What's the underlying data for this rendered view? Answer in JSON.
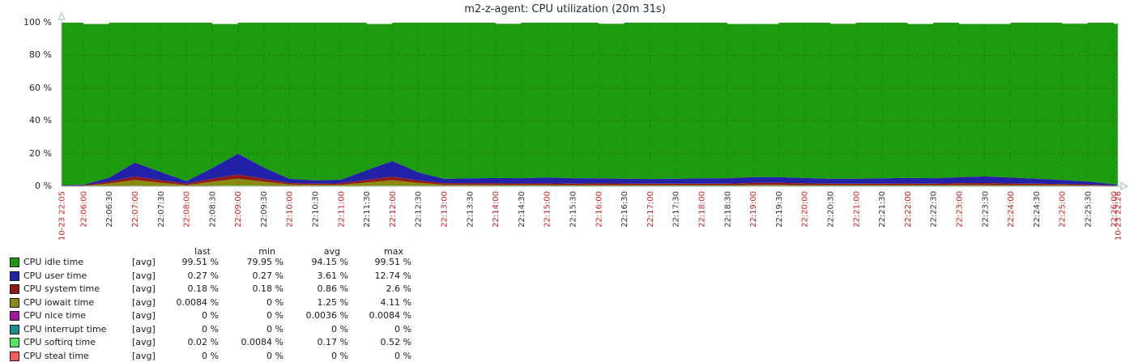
{
  "title": "m2-z-agent: CPU utilization (20m 31s)",
  "colors": {
    "idle": "#1E9B0E",
    "user": "#2222A8",
    "system": "#911919",
    "iowait": "#8A8A10",
    "nice": "#A018A0",
    "interrupt": "#1F8C8C",
    "softirq": "#55E45C",
    "steal": "#FA5C5C",
    "axis": "#A9B7BF",
    "grid_v": "rgba(0,0,0,0.14)",
    "grid_h": "rgba(0,0,0,0.20)",
    "tick_major": "#CC2222",
    "tick_minor": "#333333"
  },
  "y_axis": {
    "unit": "%",
    "ticks": [
      "0 %",
      "20 %",
      "40 %",
      "60 %",
      "80 %",
      "100 %"
    ]
  },
  "chart_data": {
    "type": "area",
    "stacked": true,
    "title": "m2-z-agent: CPU utilization (20m 31s)",
    "ylim": [
      0,
      100
    ],
    "x_range": [
      "10-23 22:05",
      "10-23 22:26"
    ],
    "x_ticks": [
      {
        "t": "10-23 22:05",
        "r": 1
      },
      {
        "t": "22:06:00",
        "r": 1
      },
      {
        "t": "22:06:30",
        "r": 0
      },
      {
        "t": "22:07:00",
        "r": 1
      },
      {
        "t": "22:07:30",
        "r": 0
      },
      {
        "t": "22:08:00",
        "r": 1
      },
      {
        "t": "22:08:30",
        "r": 0
      },
      {
        "t": "22:09:00",
        "r": 1
      },
      {
        "t": "22:09:30",
        "r": 0
      },
      {
        "t": "22:10:00",
        "r": 1
      },
      {
        "t": "22:10:30",
        "r": 0
      },
      {
        "t": "22:11:00",
        "r": 1
      },
      {
        "t": "22:11:30",
        "r": 0
      },
      {
        "t": "22:12:00",
        "r": 1
      },
      {
        "t": "22:12:30",
        "r": 0
      },
      {
        "t": "22:13:00",
        "r": 1
      },
      {
        "t": "22:13:30",
        "r": 0
      },
      {
        "t": "22:14:00",
        "r": 1
      },
      {
        "t": "22:14:30",
        "r": 0
      },
      {
        "t": "22:15:00",
        "r": 1
      },
      {
        "t": "22:15:30",
        "r": 0
      },
      {
        "t": "22:16:00",
        "r": 1
      },
      {
        "t": "22:16:30",
        "r": 0
      },
      {
        "t": "22:17:00",
        "r": 1
      },
      {
        "t": "22:17:30",
        "r": 0
      },
      {
        "t": "22:18:00",
        "r": 1
      },
      {
        "t": "22:18:30",
        "r": 0
      },
      {
        "t": "22:19:00",
        "r": 1
      },
      {
        "t": "22:19:30",
        "r": 0
      },
      {
        "t": "22:20:00",
        "r": 1
      },
      {
        "t": "22:20:30",
        "r": 0
      },
      {
        "t": "22:21:00",
        "r": 1
      },
      {
        "t": "22:21:30",
        "r": 0
      },
      {
        "t": "22:22:00",
        "r": 1
      },
      {
        "t": "22:22:30",
        "r": 0
      },
      {
        "t": "22:23:00",
        "r": 1
      },
      {
        "t": "22:23:30",
        "r": 0
      },
      {
        "t": "22:24:00",
        "r": 1
      },
      {
        "t": "22:24:30",
        "r": 0
      },
      {
        "t": "22:25:00",
        "r": 1
      },
      {
        "t": "22:25:30",
        "r": 0
      },
      {
        "t": "22:26:00",
        "r": 1
      },
      {
        "t": "10-23 22:26",
        "r": 1
      }
    ],
    "series": [
      {
        "name": "CPU softirq time",
        "color_key": "softirq",
        "values": [
          0.15,
          0.15,
          0.2,
          0.3,
          0.2,
          0.2,
          0.3,
          0.5,
          0.3,
          0.2,
          0.2,
          0.2,
          0.3,
          0.4,
          0.3,
          0.2,
          0.2,
          0.2,
          0.2,
          0.2,
          0.2,
          0.2,
          0.2,
          0.2,
          0.2,
          0.2,
          0.2,
          0.25,
          0.25,
          0.2,
          0.2,
          0.2,
          0.2,
          0.2,
          0.2,
          0.2,
          0.2,
          0.2,
          0.2,
          0.2,
          0.15,
          0.1,
          0.02
        ]
      },
      {
        "name": "CPU iowait time",
        "color_key": "iowait",
        "values": [
          0.05,
          0.1,
          1.5,
          3.5,
          2.0,
          0.5,
          2.5,
          4.1,
          2.5,
          0.9,
          0.6,
          0.7,
          2.0,
          3.3,
          1.8,
          0.8,
          0.7,
          0.6,
          0.6,
          0.6,
          0.5,
          0.5,
          0.5,
          0.5,
          0.5,
          0.5,
          0.5,
          0.6,
          0.6,
          0.5,
          0.5,
          0.5,
          0.5,
          0.5,
          0.5,
          0.6,
          0.6,
          0.5,
          0.5,
          0.4,
          0.3,
          0.1,
          0.01
        ]
      },
      {
        "name": "CPU system time",
        "color_key": "system",
        "values": [
          0.2,
          0.3,
          1.0,
          2.2,
          1.5,
          0.8,
          1.8,
          2.6,
          1.8,
          0.9,
          0.8,
          0.9,
          1.5,
          2.2,
          1.4,
          0.9,
          0.9,
          1.0,
          0.9,
          1.0,
          0.9,
          1.1,
          1.0,
          0.9,
          0.9,
          0.9,
          0.9,
          1.2,
          1.3,
          1.1,
          0.9,
          0.9,
          0.9,
          1.0,
          0.9,
          1.1,
          1.2,
          1.0,
          0.9,
          0.8,
          0.6,
          0.3,
          0.18
        ]
      },
      {
        "name": "CPU user time",
        "color_key": "user",
        "values": [
          0.3,
          0.4,
          2.5,
          8.5,
          5.0,
          1.6,
          6.5,
          12.7,
          7.0,
          2.5,
          2.0,
          2.2,
          6.0,
          9.5,
          5.0,
          2.6,
          3.0,
          3.2,
          3.2,
          3.5,
          3.3,
          3.0,
          2.9,
          2.8,
          3.0,
          3.2,
          3.3,
          3.5,
          3.4,
          3.2,
          3.0,
          3.0,
          3.2,
          3.4,
          3.3,
          3.6,
          4.0,
          3.6,
          3.0,
          2.5,
          1.8,
          0.8,
          0.27
        ]
      },
      {
        "name": "CPU idle time",
        "color_key": "idle",
        "fills_to": "stack_total"
      }
    ],
    "stack_total": [
      100,
      99.2,
      100,
      100,
      100,
      100,
      99.2,
      100,
      100,
      100,
      100,
      100,
      99.2,
      100,
      100,
      100,
      100,
      99.3,
      100,
      100,
      100,
      99.3,
      100,
      100,
      100,
      100,
      99.2,
      99.2,
      100,
      100,
      99.3,
      100,
      100,
      99.2,
      100,
      99.2,
      99.2,
      100,
      100,
      99.4,
      100,
      99.3,
      100
    ],
    "zero_series": [
      "CPU nice time",
      "CPU interrupt time",
      "CPU steal time"
    ],
    "legend_position": "bottom-left"
  },
  "legend": {
    "columns": [
      "last",
      "min",
      "avg",
      "max"
    ],
    "rows": [
      {
        "label": "CPU idle time",
        "color_key": "idle",
        "fn": "[avg]",
        "last": "99.51 %",
        "min": "79.95 %",
        "avg": "94.15 %",
        "max": "99.51 %"
      },
      {
        "label": "CPU user time",
        "color_key": "user",
        "fn": "[avg]",
        "last": "0.27 %",
        "min": "0.27 %",
        "avg": "3.61 %",
        "max": "12.74 %"
      },
      {
        "label": "CPU system time",
        "color_key": "system",
        "fn": "[avg]",
        "last": "0.18 %",
        "min": "0.18 %",
        "avg": "0.86 %",
        "max": "2.6 %"
      },
      {
        "label": "CPU iowait time",
        "color_key": "iowait",
        "fn": "[avg]",
        "last": "0.0084 %",
        "min": "0 %",
        "avg": "1.25 %",
        "max": "4.11 %"
      },
      {
        "label": "CPU nice time",
        "color_key": "nice",
        "fn": "[avg]",
        "last": "0 %",
        "min": "0 %",
        "avg": "0.0036 %",
        "max": "0.0084 %"
      },
      {
        "label": "CPU interrupt time",
        "color_key": "interrupt",
        "fn": "[avg]",
        "last": "0 %",
        "min": "0 %",
        "avg": "0 %",
        "max": "0 %"
      },
      {
        "label": "CPU softirq time",
        "color_key": "softirq",
        "fn": "[avg]",
        "last": "0.02 %",
        "min": "0.0084 %",
        "avg": "0.17 %",
        "max": "0.52 %"
      },
      {
        "label": "CPU steal time",
        "color_key": "steal",
        "fn": "[avg]",
        "last": "0 %",
        "min": "0 %",
        "avg": "0 %",
        "max": "0 %"
      }
    ]
  }
}
